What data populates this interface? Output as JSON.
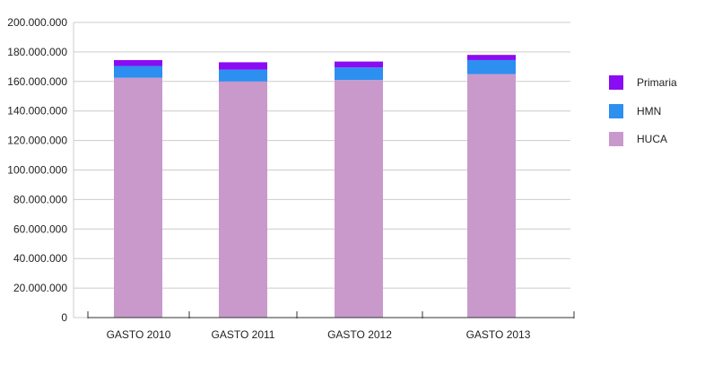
{
  "chart_data": {
    "type": "bar",
    "stacked": true,
    "categories": [
      "GASTO 2010",
      "GASTO 2011",
      "GASTO 2012",
      "GASTO 2013"
    ],
    "series": [
      {
        "name": "HUCA",
        "color": "#c999cc",
        "values": [
          162500000,
          160000000,
          161000000,
          165000000
        ]
      },
      {
        "name": "HMN",
        "color": "#2d8ff0",
        "values": [
          8000000,
          8000000,
          8500000,
          9500000
        ]
      },
      {
        "name": "Primaria",
        "color": "#8a0cf2",
        "values": [
          4000000,
          5000000,
          4000000,
          3500000
        ]
      }
    ],
    "legend_order": [
      "Primaria",
      "HMN",
      "HUCA"
    ],
    "y_ticks": [
      "0",
      "20.000.000",
      "40.000.000",
      "60.000.000",
      "80.000.000",
      "100.000.000",
      "120.000.000",
      "140.000.000",
      "160.000.000",
      "180.000.000",
      "200.000.000"
    ],
    "ylim": [
      0,
      200000000
    ],
    "grid": true,
    "legend_position": "right"
  }
}
